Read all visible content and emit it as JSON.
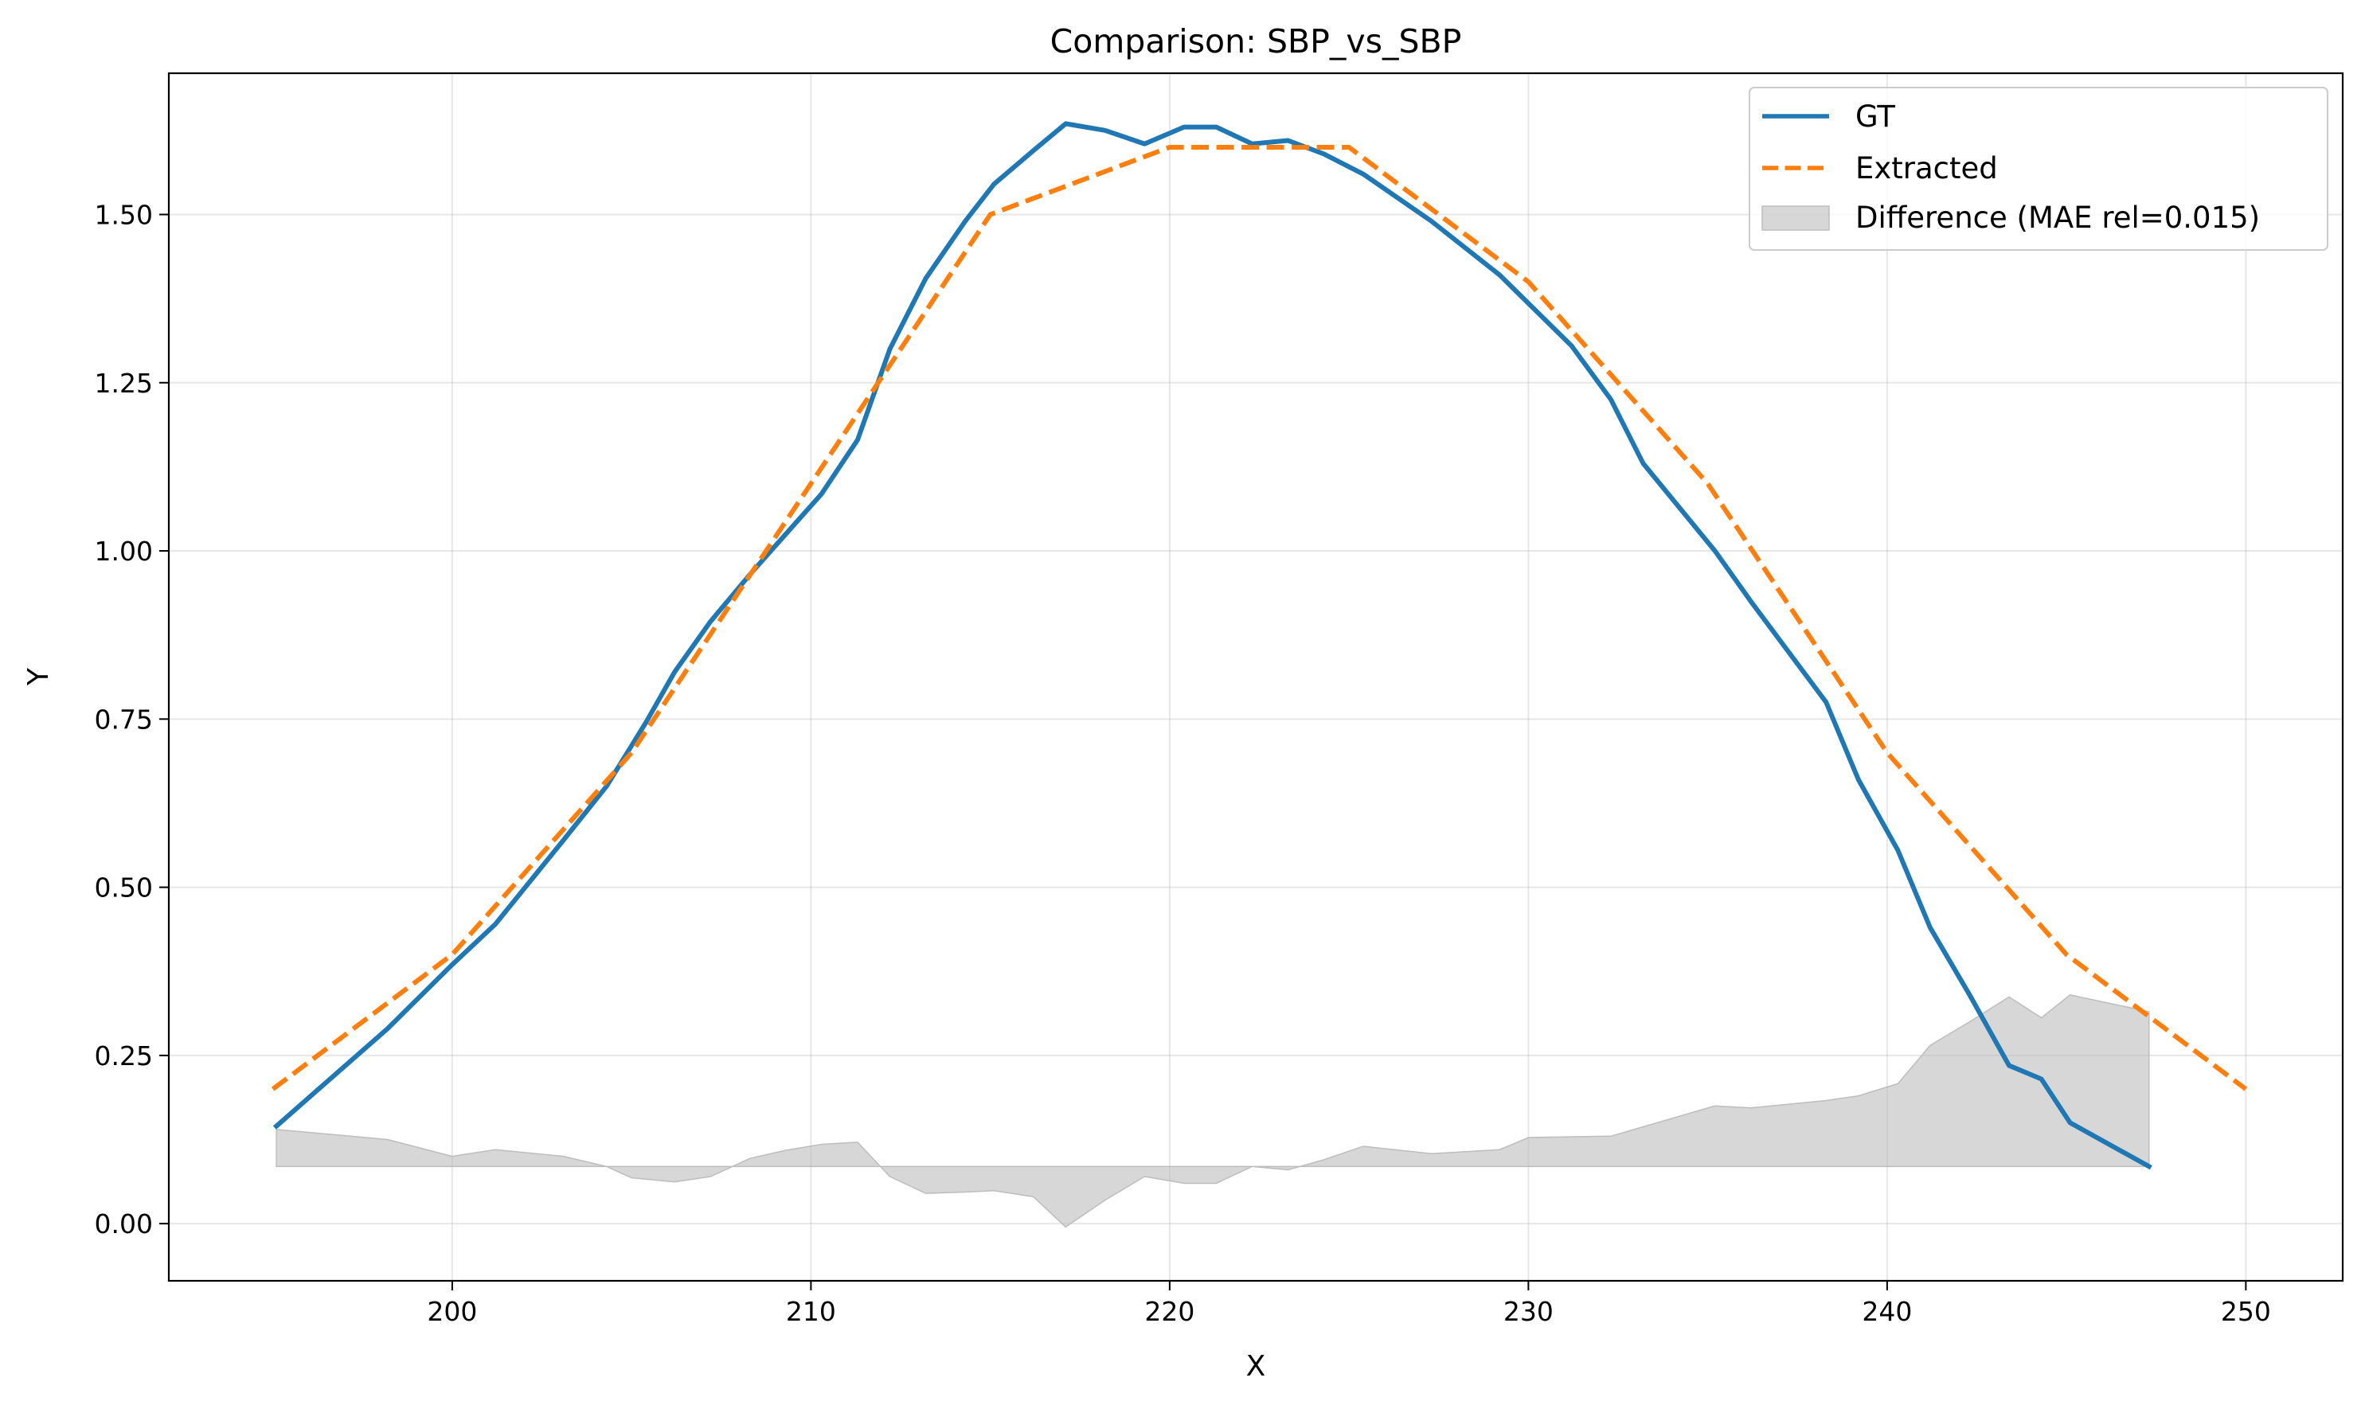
{
  "chart_data": {
    "type": "line",
    "title": "Comparison: SBP_vs_SBP",
    "xlabel": "X",
    "ylabel": "Y",
    "xlim": [
      192.1,
      252.7
    ],
    "ylim": [
      -0.085,
      1.71
    ],
    "xticks": [
      200,
      210,
      220,
      230,
      240,
      250
    ],
    "xtick_labels": [
      "200",
      "210",
      "220",
      "230",
      "240",
      "250"
    ],
    "yticks": [
      0.0,
      0.25,
      0.5,
      0.75,
      1.0,
      1.25,
      1.5
    ],
    "ytick_labels": [
      "0.00",
      "0.25",
      "0.50",
      "0.75",
      "1.00",
      "1.25",
      "1.50"
    ],
    "grid": true,
    "legend_position": "top-right",
    "colors": {
      "gt": "#1f77b4",
      "extracted": "#ff7f0e",
      "difference": "#bdbdbd"
    },
    "series": [
      {
        "name": "GT",
        "style": "solid",
        "x": [
          195.1,
          198.2,
          200.0,
          201.2,
          203.1,
          204.3,
          205.4,
          206.2,
          207.2,
          208.3,
          209.3,
          210.3,
          211.3,
          212.2,
          213.2,
          214.3,
          215.1,
          216.2,
          217.1,
          218.2,
          219.3,
          220.4,
          221.3,
          222.3,
          223.3,
          224.3,
          225.4,
          227.3,
          229.2,
          231.2,
          232.3,
          233.2,
          235.2,
          236.2,
          238.3,
          239.2,
          240.3,
          241.2,
          242.3,
          243.4,
          244.3,
          245.1,
          247.3
        ],
        "y": [
          0.145,
          0.29,
          0.385,
          0.445,
          0.57,
          0.65,
          0.745,
          0.82,
          0.895,
          0.965,
          1.025,
          1.085,
          1.165,
          1.3,
          1.405,
          1.49,
          1.545,
          1.595,
          1.635,
          1.625,
          1.605,
          1.63,
          1.63,
          1.605,
          1.61,
          1.59,
          1.56,
          1.49,
          1.41,
          1.305,
          1.225,
          1.13,
          1.0,
          0.925,
          0.775,
          0.66,
          0.555,
          0.44,
          0.34,
          0.235,
          0.215,
          0.15,
          0.085
        ]
      },
      {
        "name": "Extracted",
        "style": "dashed",
        "x": [
          195.0,
          200.0,
          205.0,
          210.0,
          215.0,
          220.0,
          225.0,
          230.0,
          235.0,
          240.0,
          245.0,
          250.0
        ],
        "y": [
          0.2,
          0.4,
          0.7,
          1.1,
          1.5,
          1.6,
          1.6,
          1.4,
          1.1,
          0.7,
          0.4,
          0.2
        ]
      }
    ],
    "difference": {
      "name": "Difference (MAE rel=0.015)",
      "baseline": 0.085,
      "x": [
        195.1,
        198.2,
        200.0,
        201.2,
        203.1,
        204.3,
        205.0,
        206.2,
        207.2,
        208.3,
        209.3,
        210.3,
        211.3,
        212.2,
        213.2,
        214.3,
        215.1,
        216.2,
        217.1,
        218.2,
        219.3,
        220.4,
        221.3,
        222.3,
        223.3,
        224.3,
        225.4,
        227.3,
        229.2,
        230.0,
        232.3,
        235.2,
        236.2,
        238.3,
        239.2,
        240.3,
        241.2,
        242.3,
        243.4,
        244.3,
        245.1,
        247.3
      ],
      "y": [
        0.14,
        0.125,
        0.1,
        0.11,
        0.1,
        0.085,
        0.068,
        0.062,
        0.07,
        0.097,
        0.109,
        0.118,
        0.121,
        0.07,
        0.045,
        0.047,
        0.049,
        0.04,
        -0.005,
        0.035,
        0.07,
        0.06,
        0.06,
        0.085,
        0.08,
        0.095,
        0.115,
        0.104,
        0.11,
        0.128,
        0.13,
        0.175,
        0.172,
        0.183,
        0.19,
        0.208,
        0.265,
        0.3,
        0.337,
        0.306,
        0.34,
        0.315
      ]
    }
  }
}
